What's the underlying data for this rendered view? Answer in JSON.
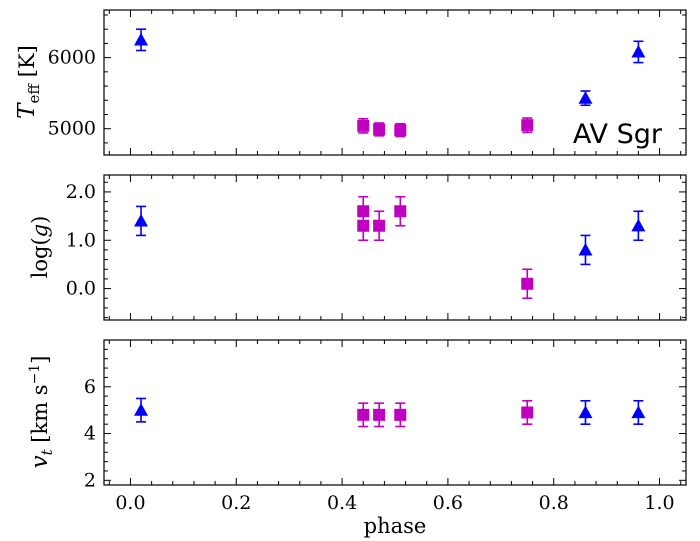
{
  "chart_data": {
    "type": "scatter",
    "xlabel": "phase",
    "xlim": [
      -0.05,
      1.05
    ],
    "xticks": [
      0.0,
      0.2,
      0.4,
      0.6,
      0.8,
      1.0
    ],
    "xtick_labels": [
      "0.0",
      "0.2",
      "0.4",
      "0.6",
      "0.8",
      "1.0"
    ],
    "colors": {
      "triangle_series": "#0000ff",
      "square_series": "#c000c0"
    },
    "panels": [
      {
        "ylabel": "T_eff [K]",
        "ylim": [
          4630,
          6670
        ],
        "yticks": [
          5000,
          6000
        ],
        "ytick_labels": [
          "5000",
          "6000"
        ],
        "annotation": "AV Sgr",
        "series": [
          {
            "name": "triangles",
            "marker": "triangle",
            "color": "#0000ff",
            "points": [
              {
                "x": 0.02,
                "y": 6250,
                "err": 150
              },
              {
                "x": 0.86,
                "y": 5430,
                "err": 100
              },
              {
                "x": 0.96,
                "y": 6080,
                "err": 150
              }
            ]
          },
          {
            "name": "squares",
            "marker": "square",
            "color": "#c000c0",
            "points": [
              {
                "x": 0.44,
                "y": 5040,
                "err": 100
              },
              {
                "x": 0.47,
                "y": 4990,
                "err": 90
              },
              {
                "x": 0.51,
                "y": 4980,
                "err": 90
              },
              {
                "x": 0.75,
                "y": 5050,
                "err": 100
              }
            ]
          }
        ]
      },
      {
        "ylabel": "log(g)",
        "ylim": [
          -0.65,
          2.35
        ],
        "yticks": [
          0.0,
          1.0,
          2.0
        ],
        "ytick_labels": [
          "0.0",
          "1.0",
          "2.0"
        ],
        "series": [
          {
            "name": "triangles",
            "marker": "triangle",
            "color": "#0000ff",
            "points": [
              {
                "x": 0.02,
                "y": 1.4,
                "err": 0.3
              },
              {
                "x": 0.86,
                "y": 0.8,
                "err": 0.3
              },
              {
                "x": 0.96,
                "y": 1.3,
                "err": 0.3
              }
            ]
          },
          {
            "name": "squares",
            "marker": "square",
            "color": "#c000c0",
            "points": [
              {
                "x": 0.44,
                "y": 1.6,
                "err": 0.3
              },
              {
                "x": 0.44,
                "y": 1.3,
                "err": 0.3
              },
              {
                "x": 0.47,
                "y": 1.3,
                "err": 0.3
              },
              {
                "x": 0.51,
                "y": 1.6,
                "err": 0.3
              },
              {
                "x": 0.75,
                "y": 0.1,
                "err": 0.3
              }
            ]
          }
        ]
      },
      {
        "ylabel": "v_t [km s^-1]",
        "ylim": [
          1.8,
          8.0
        ],
        "yticks": [
          2,
          4,
          6
        ],
        "ytick_labels": [
          "2",
          "4",
          "6"
        ],
        "series": [
          {
            "name": "triangles",
            "marker": "triangle",
            "color": "#0000ff",
            "points": [
              {
                "x": 0.02,
                "y": 5.0,
                "err": 0.5
              },
              {
                "x": 0.86,
                "y": 4.9,
                "err": 0.5
              },
              {
                "x": 0.96,
                "y": 4.9,
                "err": 0.5
              }
            ]
          },
          {
            "name": "squares",
            "marker": "square",
            "color": "#c000c0",
            "points": [
              {
                "x": 0.44,
                "y": 4.8,
                "err": 0.5
              },
              {
                "x": 0.47,
                "y": 4.8,
                "err": 0.5
              },
              {
                "x": 0.51,
                "y": 4.8,
                "err": 0.5
              },
              {
                "x": 0.75,
                "y": 4.9,
                "err": 0.5
              }
            ]
          }
        ]
      }
    ]
  }
}
